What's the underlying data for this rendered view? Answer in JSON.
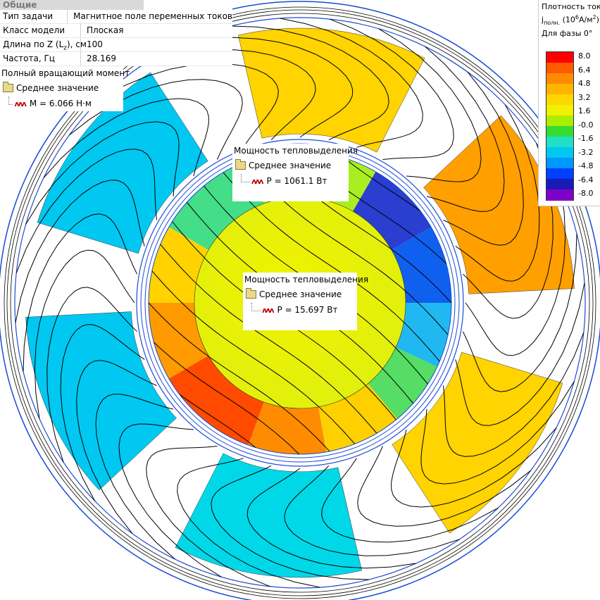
{
  "properties": {
    "header": "Общие",
    "rows": [
      {
        "key": "Тип задачи",
        "value": "Магнитное поле переменных токов"
      },
      {
        "key": "Класс модели",
        "value": "Плоская"
      },
      {
        "key": "Длина по Z (L",
        "key_sub": "z",
        "key_end": "), см",
        "value": "100"
      },
      {
        "key": "Частота, Гц",
        "value": "28.169"
      }
    ],
    "torque": {
      "title": "Полный вращающий момент",
      "node": "Среднее значение",
      "value": "M = 6.066 Н·м"
    }
  },
  "heat_stator": {
    "title": "Мощность тепловыделения",
    "node": "Среднее значение",
    "value": "P = 1061.1 Вт"
  },
  "heat_rotor": {
    "title": "Мощность тепловыделения",
    "node": "Среднее значение",
    "value": "P = 15.697 Вт"
  },
  "legend": {
    "title": "Плотность тока",
    "symbol": "j",
    "symbol_sub": "полн.",
    "unit_open": " (10",
    "unit_exp": "6",
    "unit_mid": "А/м",
    "unit_exp2": "2",
    "unit_close": ")",
    "phase": "Для фазы 0°",
    "ticks": [
      "8.0",
      "6.4",
      "4.8",
      "3.2",
      "1.6",
      "-0.0",
      "-1.6",
      "-3.2",
      "-4.8",
      "-6.4",
      "-8.0"
    ],
    "colors": [
      "#ff0000",
      "#ff5a00",
      "#ff8c00",
      "#ffb400",
      "#ffd700",
      "#f0f000",
      "#aaee00",
      "#33dd33",
      "#22e0c8",
      "#00c8f0",
      "#0096ff",
      "#0040ff",
      "#1a1ab4",
      "#8000c8"
    ]
  },
  "colors": {
    "coil_yellow": "#ffd400",
    "coil_orange": "#ffa000",
    "coil_cyan_light": "#00d8e8",
    "coil_cyan": "#00c8f0",
    "rotor_core": "#ecf000",
    "ring_blue": "#1a4bd4",
    "ring_hot": "#ff5500"
  }
}
